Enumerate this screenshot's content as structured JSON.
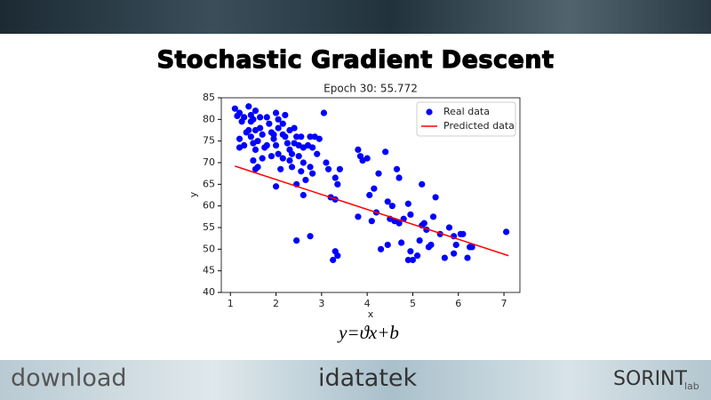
{
  "slide_title": "Stochastic Gradient Descent",
  "formula": "y=ϑx+b",
  "footer": {
    "left_logo": "download",
    "center_logo": "idatatek",
    "right_logo": "SORINT",
    "right_logo_suffix": "lab"
  },
  "chart_data": {
    "type": "scatter",
    "title": "Epoch 30: 55.772",
    "x_label": "x",
    "y_label": "y",
    "xlim": [
      0.8,
      7.35
    ],
    "ylim": [
      40,
      85
    ],
    "xticks": [
      1,
      2,
      3,
      4,
      5,
      6,
      7
    ],
    "yticks": [
      40,
      45,
      50,
      55,
      60,
      65,
      70,
      75,
      80,
      85
    ],
    "grid": false,
    "legend": "upper right",
    "series": [
      {
        "name": "Real data",
        "color": "#0000ff",
        "style": "markers",
        "x": [
          1.1,
          1.15,
          1.2,
          1.25,
          1.2,
          1.3,
          1.4,
          1.45,
          1.5,
          1.4,
          1.45,
          1.5,
          1.55,
          1.5,
          1.6,
          1.55,
          1.65,
          1.7,
          1.6,
          1.75,
          1.8,
          1.85,
          1.9,
          1.95,
          2.0,
          2.05,
          2.0,
          2.05,
          2.0,
          2.1,
          2.15,
          2.2,
          2.2,
          2.25,
          2.3,
          2.3,
          2.35,
          2.4,
          2.45,
          2.5,
          2.5,
          2.45,
          2.55,
          2.6,
          2.65,
          2.6,
          2.7,
          2.75,
          2.8,
          2.85,
          2.9,
          2.95,
          3.05,
          3.1,
          3.15,
          3.2,
          3.3,
          3.35,
          3.3,
          3.4,
          2.45,
          2.75,
          3.25,
          3.3,
          3.35,
          1.35,
          1.55,
          1.7,
          1.9,
          2.15,
          2.35,
          2.6,
          3.8,
          3.85,
          3.9,
          4.0,
          4.05,
          4.1,
          4.15,
          4.2,
          4.25,
          3.8,
          4.4,
          4.45,
          4.5,
          4.55,
          4.45,
          4.6,
          4.65,
          4.7,
          4.7,
          4.75,
          4.8,
          4.9,
          4.95,
          4.95,
          5.0,
          5.1,
          5.15,
          5.2,
          5.2,
          5.25,
          5.3,
          5.35,
          5.4,
          5.45,
          5.5,
          5.6,
          5.7,
          5.8,
          5.9,
          5.95,
          6.1,
          6.2,
          6.25,
          6.3,
          7.05,
          4.3,
          4.9,
          5.9,
          6.05,
          1.2,
          1.3,
          1.45,
          1.55,
          1.65,
          1.8,
          1.95,
          2.05,
          2.15,
          2.3,
          2.4,
          2.55,
          2.75,
          2.8
        ],
        "values": [
          82.5,
          80.8,
          81.5,
          79.5,
          75.5,
          74,
          83,
          81,
          80,
          77.5,
          76,
          74.5,
          73,
          70.5,
          69,
          68.5,
          78,
          76.5,
          75,
          73.5,
          80.5,
          79,
          77,
          75.5,
          81.5,
          80,
          74,
          72,
          64.5,
          68.5,
          79,
          81,
          76,
          74.5,
          73,
          70.5,
          69,
          78,
          76,
          74,
          71.5,
          65,
          68,
          73.5,
          66,
          62.5,
          74,
          69,
          67.5,
          76,
          72,
          75.5,
          81.5,
          70,
          68.5,
          62,
          66.5,
          65,
          61.5,
          68.5,
          52,
          53,
          47.5,
          49.5,
          48.5,
          77,
          77.5,
          71,
          71.5,
          71,
          72,
          70,
          73,
          71.5,
          70.5,
          71,
          62.5,
          56.5,
          64,
          58.5,
          67.5,
          57.5,
          72.5,
          61,
          57,
          60,
          51,
          56.5,
          68.5,
          66.5,
          56,
          51.5,
          57,
          60.5,
          58,
          49.5,
          47.5,
          48.5,
          52,
          65,
          55.5,
          56,
          54.5,
          50.5,
          51,
          57.5,
          62,
          53.5,
          48,
          55,
          53,
          51,
          53.5,
          48,
          50.5,
          50.5,
          54,
          50,
          47.5,
          49,
          53.5,
          73.5,
          80.5,
          79.5,
          82,
          80.5,
          74,
          76.5,
          78,
          76.5,
          77.5,
          74.5,
          76,
          76,
          73.5
        ]
      },
      {
        "name": "Predicted data",
        "color": "#ff0000",
        "style": "line",
        "x": [
          1.1,
          7.1
        ],
        "values": [
          69.2,
          48.5
        ]
      }
    ]
  }
}
